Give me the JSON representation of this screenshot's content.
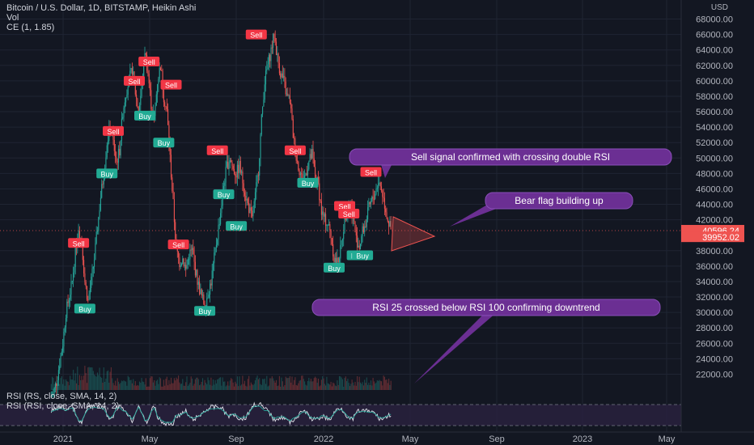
{
  "header": {
    "symbol_line": "Bitcoin / U.S. Dollar, 1D, BITSTAMP, Heikin Ashi",
    "vol_label": "Vol",
    "ce_label": "CE (1, 1.85)",
    "rsi_label": "RSI (RS, close, SMA, 14, 2)",
    "rsi_label2": "RSI (RSI, close, SMA, 14, 2)"
  },
  "chart_data": {
    "type": "candlestick",
    "currency": "USD",
    "price_ticks": [
      "68000.00",
      "66000.00",
      "64000.00",
      "62000.00",
      "60000.00",
      "58000.00",
      "56000.00",
      "54000.00",
      "52000.00",
      "50000.00",
      "48000.00",
      "46000.00",
      "44000.00",
      "42000.00",
      "38000.00",
      "36000.00",
      "34000.00",
      "32000.00",
      "30000.00",
      "28000.00",
      "26000.00",
      "24000.00",
      "22000.00"
    ],
    "ylim": [
      21000,
      69000
    ],
    "time_ticks": [
      "2021",
      "May",
      "Sep",
      "2022",
      "May",
      "Sep",
      "2023",
      "May"
    ],
    "last_price": "40596.24",
    "ce_price": "39952.02",
    "price_path": [
      [
        0,
        19000
      ],
      [
        3,
        19500
      ],
      [
        6,
        21000
      ],
      [
        9,
        23500
      ],
      [
        12,
        26000
      ],
      [
        15,
        30000
      ],
      [
        18,
        32000
      ],
      [
        21,
        34000
      ],
      [
        24,
        38000
      ],
      [
        27,
        41000
      ],
      [
        30,
        39000
      ],
      [
        33,
        34000
      ],
      [
        36,
        31500
      ],
      [
        39,
        34000
      ],
      [
        42,
        37000
      ],
      [
        45,
        41000
      ],
      [
        48,
        45000
      ],
      [
        51,
        48000
      ],
      [
        54,
        52000
      ],
      [
        57,
        54000
      ],
      [
        60,
        52000
      ],
      [
        63,
        49500
      ],
      [
        66,
        51000
      ],
      [
        69,
        56000
      ],
      [
        72,
        58500
      ],
      [
        75,
        60000
      ],
      [
        78,
        61500
      ],
      [
        81,
        58500
      ],
      [
        84,
        56000
      ],
      [
        87,
        59000
      ],
      [
        90,
        64000
      ],
      [
        93,
        61000
      ],
      [
        96,
        57000
      ],
      [
        99,
        55000
      ],
      [
        102,
        60000
      ],
      [
        105,
        62000
      ],
      [
        108,
        58000
      ],
      [
        111,
        56000
      ],
      [
        114,
        50000
      ],
      [
        117,
        44000
      ],
      [
        120,
        38000
      ],
      [
        123,
        36500
      ],
      [
        126,
        37000
      ],
      [
        129,
        35500
      ],
      [
        132,
        37500
      ],
      [
        135,
        38000
      ],
      [
        138,
        35500
      ],
      [
        141,
        33500
      ],
      [
        144,
        32000
      ],
      [
        147,
        31000
      ],
      [
        150,
        32500
      ],
      [
        153,
        34000
      ],
      [
        156,
        37000
      ],
      [
        159,
        40000
      ],
      [
        162,
        43000
      ],
      [
        165,
        46500
      ],
      [
        168,
        49000
      ],
      [
        171,
        50000
      ],
      [
        174,
        48500
      ],
      [
        177,
        48000
      ],
      [
        180,
        49000
      ],
      [
        183,
        47000
      ],
      [
        186,
        45000
      ],
      [
        189,
        43500
      ],
      [
        192,
        42000
      ],
      [
        195,
        45000
      ],
      [
        198,
        48500
      ],
      [
        201,
        55000
      ],
      [
        204,
        60000
      ],
      [
        207,
        62000
      ],
      [
        210,
        64000
      ],
      [
        213,
        66000
      ],
      [
        216,
        63000
      ],
      [
        219,
        61000
      ],
      [
        222,
        60000
      ],
      [
        225,
        58000
      ],
      [
        228,
        57500
      ],
      [
        231,
        53000
      ],
      [
        234,
        50000
      ],
      [
        237,
        48500
      ],
      [
        240,
        47000
      ],
      [
        243,
        48000
      ],
      [
        246,
        49500
      ],
      [
        249,
        50500
      ],
      [
        252,
        47500
      ],
      [
        255,
        46500
      ],
      [
        258,
        43000
      ],
      [
        261,
        42000
      ],
      [
        264,
        41500
      ],
      [
        267,
        40000
      ],
      [
        270,
        37000
      ],
      [
        273,
        36500
      ],
      [
        276,
        38000
      ],
      [
        279,
        41000
      ],
      [
        282,
        43500
      ],
      [
        285,
        44000
      ],
      [
        288,
        42500
      ],
      [
        291,
        39500
      ],
      [
        294,
        38500
      ],
      [
        297,
        40500
      ],
      [
        300,
        41500
      ],
      [
        303,
        43500
      ],
      [
        306,
        44500
      ],
      [
        309,
        45500
      ],
      [
        312,
        47000
      ],
      [
        315,
        46000
      ],
      [
        318,
        44000
      ],
      [
        321,
        42000
      ],
      [
        324,
        40596
      ]
    ],
    "rsi_level_lines": [
      70,
      30
    ],
    "signals": [
      {
        "t": 27,
        "label": "Sell",
        "kind": "sell",
        "price": 39000
      },
      {
        "t": 33,
        "label": "Buy",
        "kind": "buy",
        "price": 30500
      },
      {
        "t": 54,
        "label": "Buy",
        "kind": "buy",
        "price": 48000
      },
      {
        "t": 60,
        "label": "Sell",
        "kind": "sell",
        "price": 53500
      },
      {
        "t": 80,
        "label": "Sell",
        "kind": "sell",
        "price": 60000
      },
      {
        "t": 90,
        "label": "Buy",
        "kind": "buy",
        "price": 55500
      },
      {
        "t": 94,
        "label": "Sell",
        "kind": "sell",
        "price": 62500
      },
      {
        "t": 108,
        "label": "Buy",
        "kind": "buy",
        "price": 52000
      },
      {
        "t": 115,
        "label": "Sell",
        "kind": "sell",
        "price": 59500
      },
      {
        "t": 122,
        "label": "Sell",
        "kind": "sell",
        "price": 38800
      },
      {
        "t": 147,
        "label": "Buy",
        "kind": "buy",
        "price": 30200
      },
      {
        "t": 159,
        "label": "Sell",
        "kind": "sell",
        "price": 51000
      },
      {
        "t": 165,
        "label": "Buy",
        "kind": "buy",
        "price": 45300
      },
      {
        "t": 177,
        "label": "Buy",
        "kind": "buy",
        "price": 41200
      },
      {
        "t": 196,
        "label": "Sell",
        "kind": "sell",
        "price": 66000
      },
      {
        "t": 233,
        "label": "Sell",
        "kind": "sell",
        "price": 51000
      },
      {
        "t": 245,
        "label": "Buy",
        "kind": "buy",
        "price": 46800
      },
      {
        "t": 270,
        "label": "Buy",
        "kind": "buy",
        "price": 35800
      },
      {
        "t": 280,
        "label": "Sell",
        "kind": "sell",
        "price": 43800
      },
      {
        "t": 284,
        "label": "Sell",
        "kind": "sell",
        "price": 42800
      },
      {
        "t": 292,
        "label": "Buy",
        "kind": "buy",
        "price": 37400
      },
      {
        "t": 297,
        "label": "Buy",
        "kind": "buy",
        "price": 37400
      },
      {
        "t": 305,
        "label": "Sell",
        "kind": "sell",
        "price": 48200
      }
    ]
  },
  "annotations": {
    "callout1": "Sell signal confirmed with crossing double RSI",
    "callout2": "Bear flag building up",
    "callout3": "RSI 25 crossed below RSI 100 confirming downtrend"
  },
  "colors": {
    "background": "#131722",
    "up": "#26a69a",
    "down": "#ef5350",
    "sell_tag": "#f23645",
    "buy_tag": "#22ab94",
    "callout": "#6b2f93",
    "rsi_fill": "#2a2240"
  }
}
